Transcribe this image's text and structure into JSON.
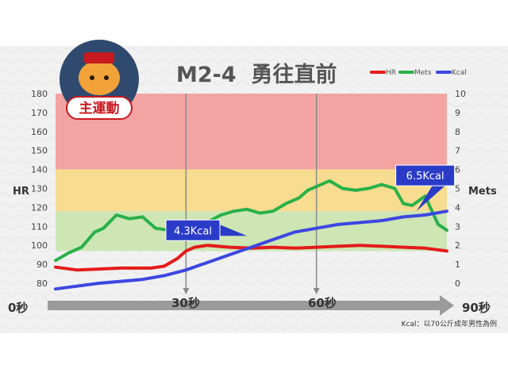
{
  "colors": {
    "hr": "#e41b1b",
    "mets": "#29b04a",
    "kcal": "#3c47e0",
    "zone_high": "#f4a3a3",
    "zone_mid": "#f8dc8f",
    "zone_low": "#cde6b4",
    "title": "#555555",
    "badge": "#c8191e",
    "callout": "#2a3bc8"
  },
  "mascot": {
    "badge_label": "主運動",
    "icon": "tiger-mascot-icon"
  },
  "footnote": "Kcal：以70公斤成年男性為例",
  "time_axis": {
    "labels": [
      "0秒",
      "30秒",
      "60秒",
      "90秒"
    ],
    "icon": "arrow-right-icon"
  },
  "chart_data": {
    "type": "line",
    "title": "M2-4  勇往直前",
    "xlabel": "",
    "ylabel": "HR",
    "y2label": "Mets",
    "xlim": [
      0,
      90
    ],
    "ylim": [
      75,
      180
    ],
    "y2lim": [
      0,
      10
    ],
    "yticks": [
      80,
      90,
      100,
      110,
      120,
      130,
      140,
      150,
      160,
      170,
      180
    ],
    "y2ticks": [
      0,
      1,
      2,
      3,
      4,
      5,
      6,
      7,
      8,
      9,
      10
    ],
    "x_markers": [
      30,
      60
    ],
    "zones": [
      {
        "from": 140,
        "to": 180,
        "color": "#f4a3a3"
      },
      {
        "from": 118,
        "to": 140,
        "color": "#f8dc8f"
      },
      {
        "from": 97,
        "to": 118,
        "color": "#cde6b4"
      }
    ],
    "grid": false,
    "legend": "top-right",
    "series": [
      {
        "name": "HR",
        "axis": "left",
        "x": [
          0,
          5,
          10,
          15,
          20,
          22,
          25,
          28,
          30,
          32,
          35,
          40,
          45,
          50,
          55,
          60,
          65,
          70,
          75,
          80,
          85,
          90
        ],
        "values": [
          88.5,
          87,
          87.5,
          88,
          88,
          88,
          89,
          93,
          97,
          99,
          100,
          99,
          98.5,
          99,
          98.5,
          99,
          99.5,
          100,
          99.5,
          99,
          98.5,
          97
        ]
      },
      {
        "name": "Mets",
        "axis": "right",
        "x": [
          0,
          3,
          6,
          9,
          11,
          14,
          17,
          20,
          23,
          26,
          30,
          34,
          38,
          41,
          44,
          47,
          50,
          53,
          56,
          58,
          60,
          63,
          66,
          69,
          72,
          75,
          78,
          80,
          82,
          85,
          88,
          90
        ],
        "values": [
          1.2,
          1.6,
          1.9,
          2.7,
          2.9,
          3.6,
          3.4,
          3.5,
          2.9,
          2.8,
          2.7,
          3.1,
          3.6,
          3.8,
          3.9,
          3.7,
          3.8,
          4.2,
          4.5,
          4.9,
          5.1,
          5.4,
          5.0,
          4.9,
          5.0,
          5.2,
          5.0,
          4.2,
          4.1,
          4.6,
          3.1,
          2.8
        ]
      },
      {
        "name": "Kcal",
        "axis": "left",
        "x": [
          0,
          10,
          20,
          25,
          30,
          35,
          40,
          45,
          50,
          55,
          60,
          65,
          70,
          75,
          80,
          85,
          90
        ],
        "values": [
          77,
          80,
          82,
          84,
          87,
          91,
          95,
          99,
          103,
          107,
          109,
          111,
          112,
          113,
          115,
          116,
          118
        ]
      }
    ],
    "annotations": [
      {
        "text": "4.3Kcal",
        "x": 44,
        "y": 105
      },
      {
        "text": "6.5Kcal",
        "x": 83,
        "y": 118
      }
    ]
  }
}
